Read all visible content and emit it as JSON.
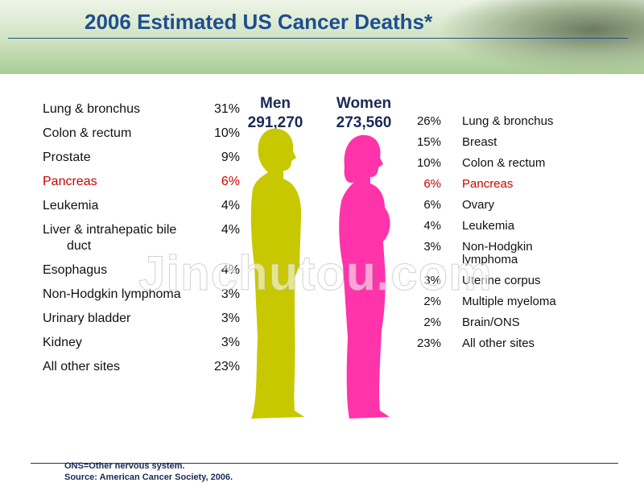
{
  "header": {
    "title": "2006 Estimated US Cancer Deaths*"
  },
  "men": {
    "label": "Men",
    "total": "291,270",
    "color": "#c8c800",
    "rows": [
      [
        "Lung & bronchus",
        "31%"
      ],
      [
        "Colon & rectum",
        "10%"
      ],
      [
        "Prostate",
        "9%"
      ],
      [
        "Pancreas",
        "6%"
      ],
      [
        "Leukemia",
        "4%"
      ],
      [
        "Liver & intrahepatic bile duct",
        "4%"
      ],
      [
        "Esophagus",
        "4%"
      ],
      [
        "Non-Hodgkin lymphoma",
        "3%"
      ],
      [
        "Urinary bladder",
        "3%"
      ],
      [
        "Kidney",
        "3%"
      ],
      [
        "All other sites",
        "23%"
      ]
    ]
  },
  "women": {
    "label": "Women",
    "total": "273,560",
    "color": "#ff33aa",
    "rows": [
      [
        "Lung & bronchus",
        "26%"
      ],
      [
        "Breast",
        "15%"
      ],
      [
        "Colon & rectum",
        "10%"
      ],
      [
        "Pancreas",
        "6%"
      ],
      [
        "Ovary",
        "6%"
      ],
      [
        "Leukemia",
        "4%"
      ],
      [
        "Non-Hodgkin lymphoma",
        "3%"
      ],
      [
        "Uterine corpus",
        "3%"
      ],
      [
        "Multiple myeloma",
        "2%"
      ],
      [
        "Brain/ONS",
        "2%"
      ],
      [
        "All other sites",
        "23%"
      ]
    ]
  },
  "highlight": {
    "label": "Pancreas",
    "color": "#cc0000"
  },
  "watermark": "Jinchutou.com",
  "footnotes": [
    "ONS=Other nervous system.",
    "Source: American Cancer Society, 2006."
  ]
}
